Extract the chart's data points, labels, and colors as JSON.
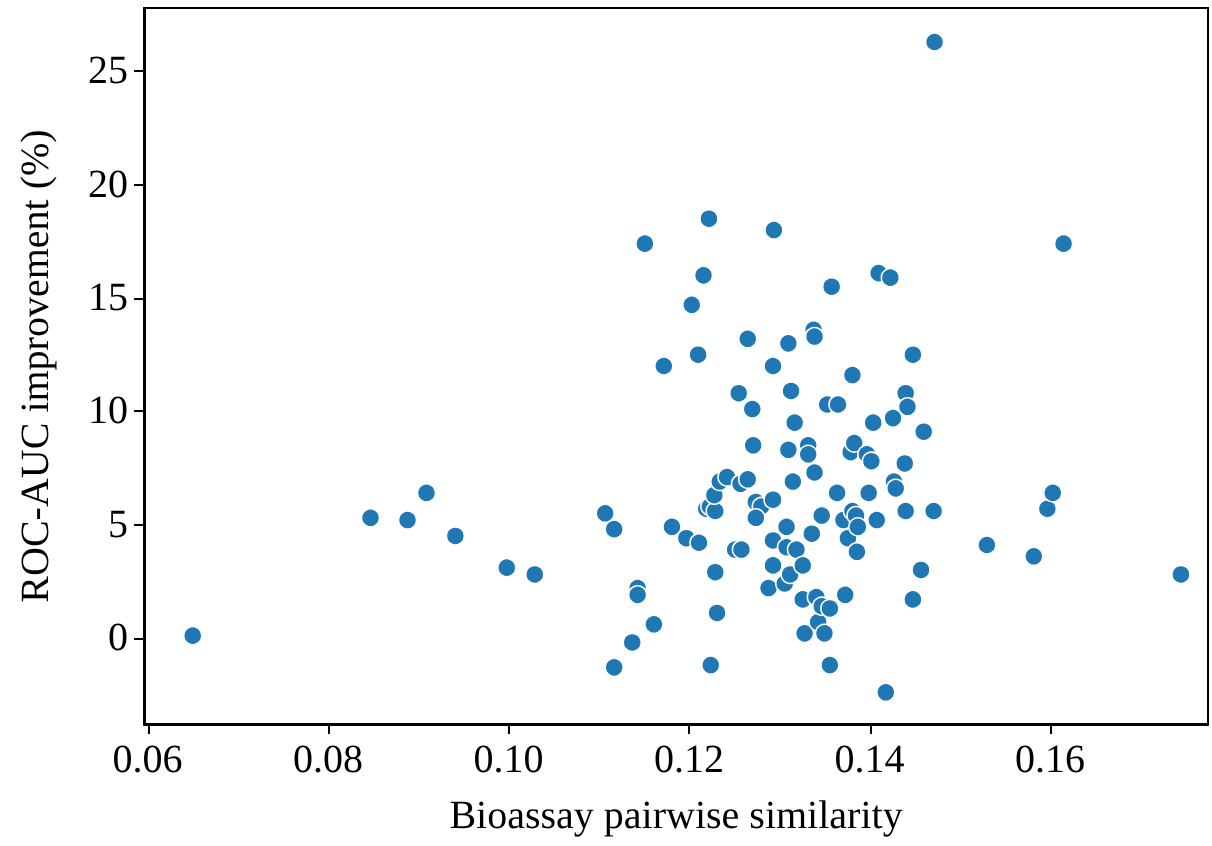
{
  "chart_data": {
    "type": "scatter",
    "xlabel": "Bioassay pairwise similarity",
    "ylabel": "ROC-AUC improvement (%)",
    "xlim": [
      0.0596,
      0.1775
    ],
    "ylim": [
      -3.8,
      27.8
    ],
    "xticks": [
      {
        "value": 0.06,
        "label": "0.06"
      },
      {
        "value": 0.08,
        "label": "0.08"
      },
      {
        "value": 0.1,
        "label": "0.10"
      },
      {
        "value": 0.12,
        "label": "0.12"
      },
      {
        "value": 0.14,
        "label": "0.14"
      },
      {
        "value": 0.16,
        "label": "0.16"
      }
    ],
    "yticks": [
      0,
      5,
      10,
      15,
      20,
      25
    ],
    "grid": false,
    "marker": "circle",
    "series": [
      {
        "color": "#1f77b4",
        "x": [
          0.065,
          0.0847,
          0.0888,
          0.0909,
          0.0941,
          0.0998,
          0.1029,
          0.1107,
          0.1117,
          0.1117,
          0.1137,
          0.1143,
          0.1143,
          0.1161,
          0.1151,
          0.1172,
          0.1181,
          0.1197,
          0.1203,
          0.121,
          0.1211,
          0.1216,
          0.1222,
          0.1219,
          0.1223,
          0.1229,
          0.1228,
          0.1234,
          0.1242,
          0.1229,
          0.1231,
          0.1224,
          0.1251,
          0.1258,
          0.1255,
          0.1257,
          0.1265,
          0.1265,
          0.127,
          0.1271,
          0.1274,
          0.128,
          0.1274,
          0.1293,
          0.1294,
          0.1293,
          0.1293,
          0.1293,
          0.1288,
          0.131,
          0.1313,
          0.1317,
          0.131,
          0.1315,
          0.1308,
          0.1308,
          0.1319,
          0.1306,
          0.1312,
          0.1326,
          0.1326,
          0.1328,
          0.1332,
          0.1332,
          0.1338,
          0.1339,
          0.1339,
          0.1336,
          0.1341,
          0.1343,
          0.1347,
          0.1356,
          0.135,
          0.1347,
          0.1356,
          0.1358,
          0.1353,
          0.1365,
          0.1364,
          0.1371,
          0.1373,
          0.1376,
          0.1381,
          0.1379,
          0.1383,
          0.1381,
          0.1385,
          0.1387,
          0.1386,
          0.1397,
          0.1402,
          0.1399,
          0.1404,
          0.1408,
          0.141,
          0.1423,
          0.1426,
          0.1427,
          0.1429,
          0.1418,
          0.144,
          0.1442,
          0.1439,
          0.144,
          0.1448,
          0.1448,
          0.1457,
          0.146,
          0.1471,
          0.1472,
          0.153,
          0.1582,
          0.1597,
          0.1603,
          0.1615,
          0.1745
        ],
        "values": [
          0.1,
          5.3,
          5.2,
          6.4,
          4.5,
          3.1,
          2.8,
          5.5,
          4.8,
          -1.3,
          -0.2,
          2.2,
          1.9,
          0.6,
          17.4,
          12.0,
          4.9,
          4.4,
          14.7,
          12.5,
          4.2,
          16.0,
          18.5,
          5.7,
          5.8,
          5.6,
          6.3,
          6.9,
          7.1,
          2.9,
          1.1,
          -1.2,
          3.9,
          3.9,
          10.8,
          6.8,
          7.0,
          13.2,
          10.1,
          8.5,
          6.0,
          5.8,
          5.3,
          6.1,
          18.0,
          12.0,
          4.3,
          3.2,
          2.2,
          13.0,
          10.9,
          9.5,
          8.3,
          6.9,
          4.9,
          4.0,
          3.9,
          2.4,
          2.8,
          3.2,
          1.7,
          0.2,
          8.5,
          8.1,
          13.6,
          13.3,
          7.3,
          4.6,
          1.8,
          0.7,
          1.4,
          1.3,
          0.2,
          5.4,
          -1.2,
          15.5,
          10.3,
          10.3,
          6.4,
          5.2,
          1.9,
          4.4,
          11.6,
          8.2,
          8.6,
          5.6,
          5.4,
          4.9,
          3.8,
          8.1,
          7.8,
          6.4,
          9.5,
          5.2,
          16.1,
          15.9,
          9.7,
          6.9,
          6.6,
          -2.4,
          10.8,
          10.2,
          7.7,
          5.6,
          12.5,
          1.7,
          3.0,
          9.1,
          5.6,
          26.3,
          4.1,
          3.6,
          5.7,
          6.4,
          17.4,
          2.8
        ]
      }
    ]
  }
}
